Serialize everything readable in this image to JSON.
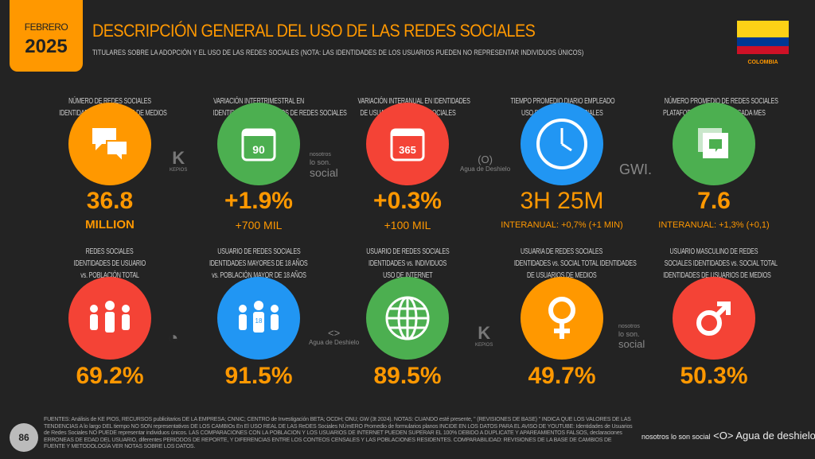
{
  "header": {
    "month": "FEBRERO",
    "year": "2025",
    "title": "DESCRIPCIÓN GENERAL DEL USO DE LAS REDES SOCIALES",
    "subtitle": "TITULARES SOBRE LA ADOPCIÓN Y EL USO DE LAS REDES SOCIALES (NOTA: LAS IDENTIDADES DE LOS USUARIOS PUEDEN NO REPRESENTAR INDIVIDUOS ÚNICOS)",
    "country": "COLOMBIA",
    "flag_colors": [
      "#FCD116",
      "#003893",
      "#CE1126"
    ]
  },
  "row1": [
    {
      "label1": "NÚMERO DE REDES SOCIALES",
      "label2": "IDENTIDADES DE USUARIOS DE MEDIOS",
      "icon": "chat-bubbles-icon",
      "color": "#FF9800",
      "value": "36.8",
      "sub": "MILLION"
    },
    {
      "label1": "VARIACIÓN INTERTRIMESTRAL EN",
      "label2": "IDENTIDADES DE USUARIOS DE REDES SOCIALES",
      "icon": "calendar-90-icon",
      "icon_text": "90",
      "color": "#4CAF50",
      "value": "+1.9%",
      "sub": "+700 MIL"
    },
    {
      "label1": "VARIACIÓN INTERANUAL EN IDENTIDADES",
      "label2": "DE USUARIOS DE REDES SOCIALES",
      "icon": "calendar-365-icon",
      "icon_text": "365",
      "color": "#F44336",
      "value": "+0.3%",
      "sub": "+100 MIL"
    },
    {
      "label1": "TIEMPO PROMEDIO DIARIO EMPLEADO",
      "label2": "USO DE LAS REDES SOCIALES",
      "icon": "clock-icon",
      "color": "#2196F3",
      "value": "3H 25M",
      "sub": "INTERANUAL: +0,7% (+1 MIN)"
    },
    {
      "label1": "NÚMERO PROMEDIO DE REDES SOCIALES",
      "label2": "PLATAFORMAS UTILIZADAS CADA MES",
      "icon": "stacked-chat-icon",
      "color": "#4CAF50",
      "value": "7.6",
      "sub": "INTERANUAL: +1,3% (+0,1)"
    }
  ],
  "row2": [
    {
      "label1": "REDES SOCIALES",
      "label2": "IDENTIDADES DE USUARIO",
      "label3": "vs. POBLACIÓN TOTAL",
      "icon": "people-group-icon",
      "color": "#F44336",
      "value": "69.2%"
    },
    {
      "label1": "USUARIO DE REDES SOCIALES",
      "label2": "IDENTIDADES MAYORES DE 18 AÑOS",
      "label3": "vs. POBLACIÓN MAYOR DE 18 AÑOS",
      "icon": "adults-18-icon",
      "icon_text": "18",
      "color": "#2196F3",
      "value": "91.5%"
    },
    {
      "label1": "USUARIO DE REDES SOCIALES",
      "label2": "IDENTIDADES vs. INDIVIDUOS",
      "label3": "USO DE INTERNET",
      "icon": "globe-icon",
      "color": "#4CAF50",
      "value": "89.5%"
    },
    {
      "label1": "USUARIA DE REDES SOCIALES",
      "label2": "IDENTIDADES vs. SOCIAL TOTAL IDENTIDADES",
      "label3": "DE USUARIOS DE MEDIOS",
      "icon": "female-icon",
      "color": "#FF9800",
      "value": "49.7%"
    },
    {
      "label1": "USUARIO MASCULINO DE REDES",
      "label2": "SOCIALES IDENTIDADES vs. SOCIAL TOTAL",
      "label3": "IDENTIDADES DE USUARIOS DE MEDIOS",
      "icon": "male-icon",
      "color": "#F44336",
      "value": "50.3%"
    }
  ],
  "logos": {
    "kepios": "KEPIOS",
    "nosotros": "nosotros",
    "loson": "lo son.",
    "social": "social",
    "agua": "Agua de Deshielo",
    "gwi": "GWI."
  },
  "footer": {
    "page": "86",
    "sources": "FUENTES: Análisis de KE PIOS, RECURSOS publicitarios DE LA EMPRESA; CNNIC; CENTRO de Investigación BETA; OCDH; ONU; GW (3t 2024). NOTAS: CUANDO esté presente, \" (REVISIONES DE BASE) \" INDICA QUE LOS VALORES DE LAS TENDENCIAS A lo largo DEL tiempo NO SON representativos DE LOS CAMBIOs En El USO REAL DE LAS ReDES Sociales NÚmERO Promedio de formularios planos INCIDE EN LOS DATOS PARA EL AVISO DE YOUTUBE: Identidades de Usuarios de Redes Sociales NO PUEDE representar individuos únicos. LAS COMPARACIONES CON LA POBLACION Y LOS USUARIOS DE INTERNET PUEDEN SUPERAR EL 100% DEBIDO A DUPLICATE Y APAREAMIENTOS FALSOS, declaraciones ERRONEAS DE EDAD DEL USUARIO, diferentes PERIODOS DE REPORTE, Y DIFERENCIAS ENTRE LOS CONTEOS CENSALES Y LAS POBLACIONES RESIDENTES. COMPARABILIDAD: REVISIONES DE LA BASE DE CAMBIOS DE FUENTE Y METODOLOGÍA VER NOTAS SOBRE LOS DATOS.",
    "brand1": "nosotros lo son social",
    "brand2": "<O> Agua de deshielo"
  }
}
